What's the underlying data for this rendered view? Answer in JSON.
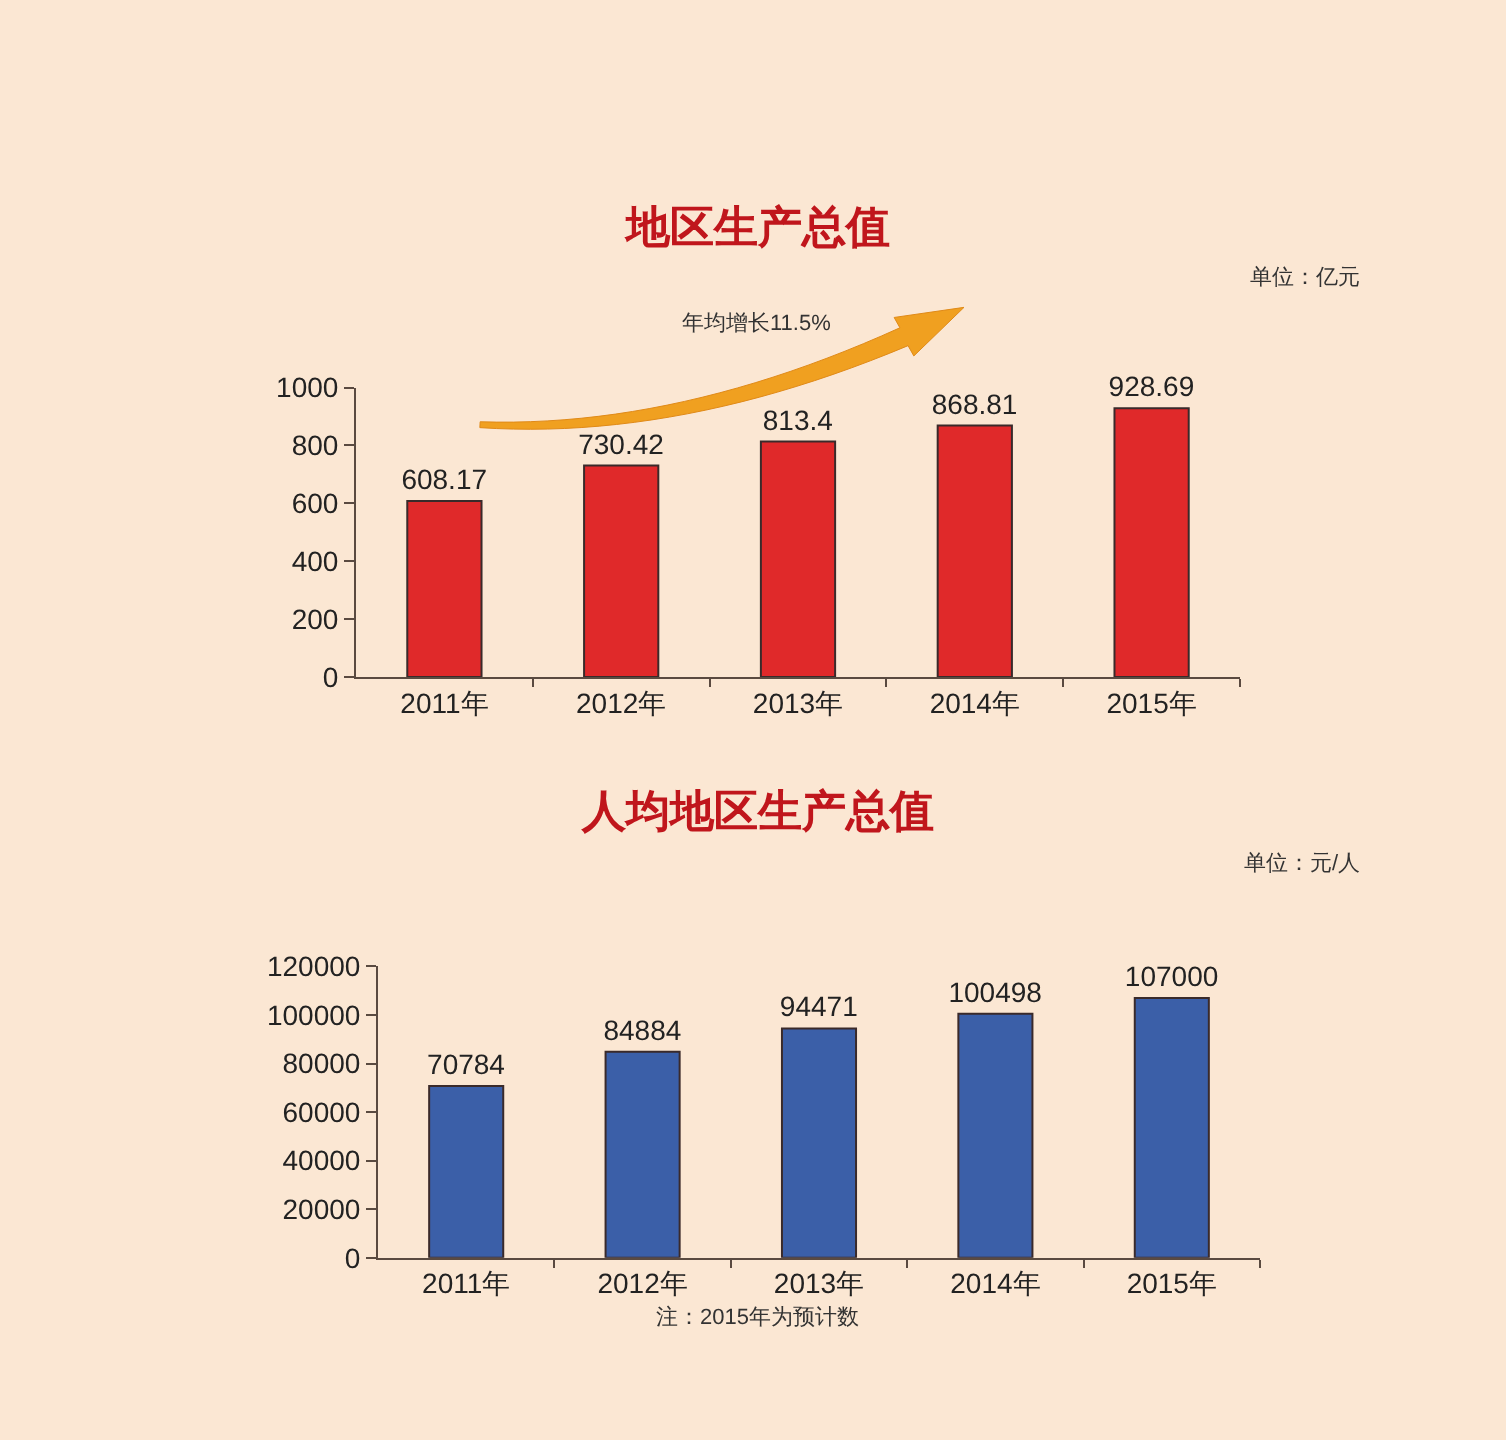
{
  "chart_data": [
    {
      "type": "bar",
      "title": "地区生产总值",
      "categories": [
        "2011年",
        "2012年",
        "2013年",
        "2014年",
        "2015年"
      ],
      "values": [
        608.17,
        730.42,
        813.4,
        868.81,
        928.69
      ],
      "color": "#e0292a",
      "ylim": [
        0,
        1000
      ],
      "yticks": [
        0,
        200,
        400,
        600,
        800,
        1000
      ],
      "data_labels": true,
      "annotations": [
        "单位：亿元",
        "年均增长11.5%"
      ]
    },
    {
      "type": "bar",
      "title": "人均地区生产总值",
      "categories": [
        "2011年",
        "2012年",
        "2013年",
        "2014年",
        "2015年"
      ],
      "values": [
        70784,
        84884,
        94471,
        100498,
        107000
      ],
      "color": "#3b5fa8",
      "ylim": [
        0,
        120000
      ],
      "yticks": [
        0,
        20000,
        40000,
        60000,
        80000,
        100000,
        120000
      ],
      "data_labels": true,
      "annotations": [
        "单位：元/人",
        "注：2015年为预计数"
      ]
    }
  ]
}
